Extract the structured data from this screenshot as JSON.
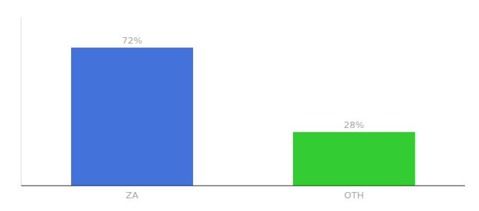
{
  "chart_data": {
    "type": "bar",
    "categories": [
      "ZA",
      "OTH"
    ],
    "values": [
      72,
      28
    ],
    "value_labels": [
      "72%",
      "28%"
    ],
    "colors": [
      "#4472db",
      "#33cc33"
    ],
    "ylim": [
      0,
      88
    ],
    "yticks": [],
    "grid": false,
    "data_labels": true,
    "tick_labels": "x"
  }
}
